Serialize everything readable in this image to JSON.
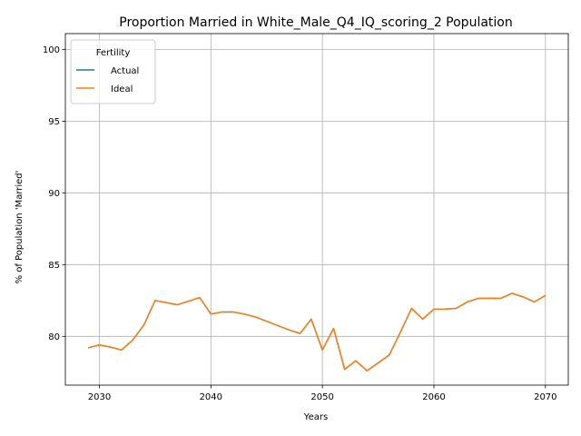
{
  "chart_data": {
    "type": "line",
    "title": "Proportion Married in White_Male_Q4_IQ_scoring_2 Population",
    "xlabel": "Years",
    "ylabel": "% of Population 'Married'",
    "xlim": [
      2026.95,
      2072.05
    ],
    "ylim": [
      76.6,
      101.1
    ],
    "xticks": [
      2030,
      2040,
      2050,
      2060,
      2070
    ],
    "yticks": [
      80,
      85,
      90,
      95,
      100
    ],
    "grid": true,
    "legend": {
      "title": "Fertility",
      "placement": "top-left"
    },
    "x": [
      2029,
      2030,
      2031,
      2032,
      2033,
      2034,
      2035,
      2036,
      2037,
      2038,
      2039,
      2040,
      2041,
      2042,
      2043,
      2044,
      2045,
      2046,
      2047,
      2048,
      2049,
      2050,
      2051,
      2052,
      2053,
      2054,
      2055,
      2056,
      2057,
      2058,
      2059,
      2060,
      2061,
      2062,
      2063,
      2064,
      2065,
      2066,
      2067,
      2068,
      2069,
      2070
    ],
    "series": [
      {
        "name": "Actual",
        "color": "#1f77b4",
        "values": [
          79.2,
          79.4,
          79.25,
          79.05,
          79.75,
          80.8,
          82.5,
          82.35,
          82.2,
          82.45,
          82.7,
          81.55,
          81.7,
          81.7,
          81.55,
          81.35,
          81.05,
          80.75,
          80.45,
          80.2,
          81.2,
          79.05,
          80.55,
          77.7,
          78.3,
          77.6,
          78.15,
          78.7,
          80.3,
          81.95,
          81.2,
          81.9,
          81.9,
          81.95,
          82.4,
          82.65,
          82.65,
          82.65,
          83.0,
          82.75,
          82.4,
          82.85
        ]
      },
      {
        "name": "Ideal",
        "color": "#ff7f0e",
        "values": [
          79.2,
          79.4,
          79.25,
          79.05,
          79.75,
          80.8,
          82.5,
          82.35,
          82.2,
          82.45,
          82.7,
          81.55,
          81.7,
          81.7,
          81.55,
          81.35,
          81.05,
          80.75,
          80.45,
          80.2,
          81.2,
          79.05,
          80.55,
          77.7,
          78.3,
          77.6,
          78.15,
          78.7,
          80.3,
          81.95,
          81.2,
          81.9,
          81.9,
          81.95,
          82.4,
          82.65,
          82.65,
          82.65,
          83.0,
          82.75,
          82.4,
          82.85
        ]
      }
    ]
  }
}
